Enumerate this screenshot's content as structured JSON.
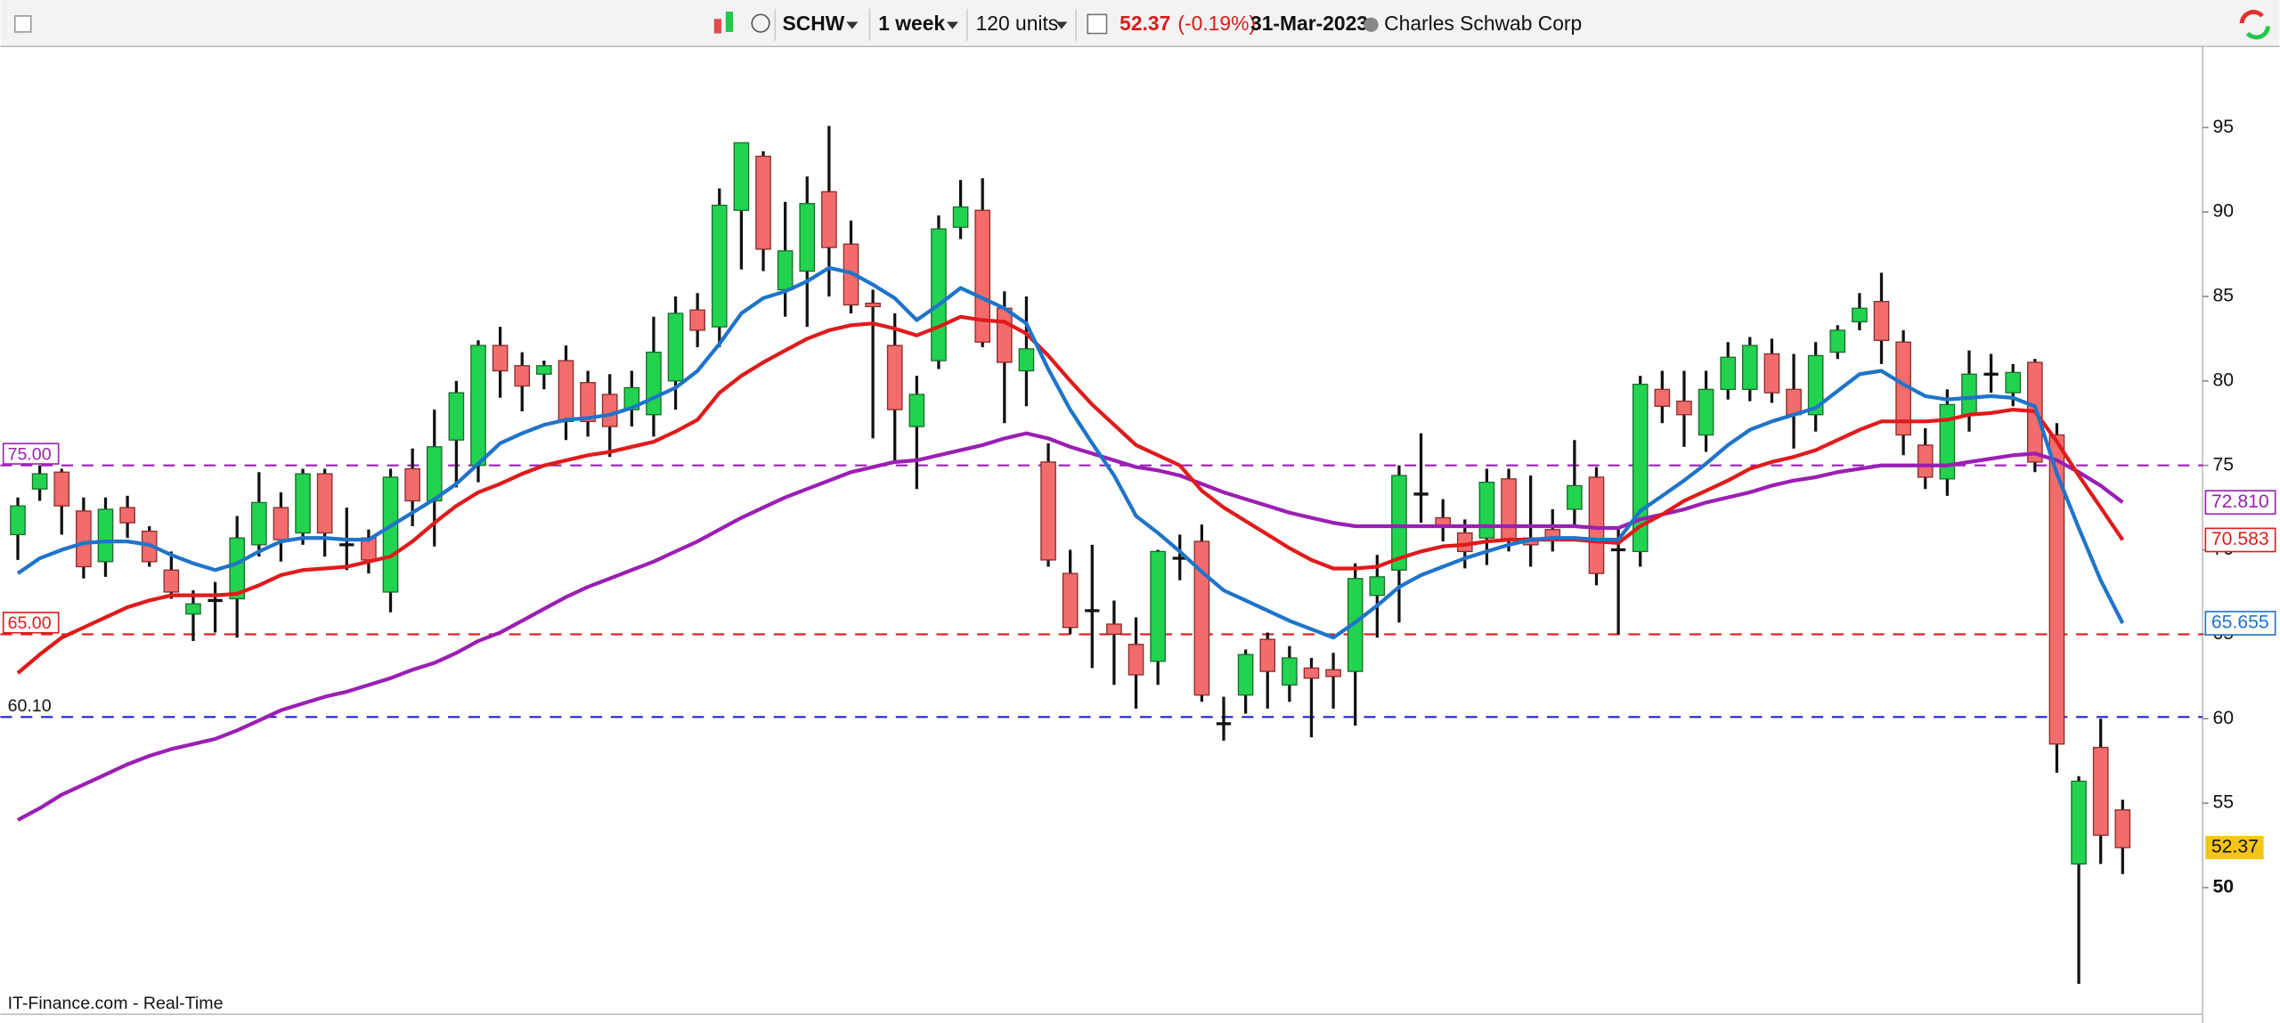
{
  "toolbar": {
    "symbol": "SCHW",
    "period": "1 week",
    "units": "120 units",
    "change": "(-0.19%)",
    "date": "31-Mar-2023",
    "name": "Charles Schwab Corp"
  },
  "footer": "IT-Finance.com - Real-Time",
  "chart_data": {
    "type": "candlestick",
    "up_color": "#22d34f",
    "down_color": "#f26c6c",
    "open": [
      70.9,
      73.6,
      74.6,
      72.3,
      69.3,
      72.5,
      71.1,
      68.8,
      66.2,
      66.9,
      67.1,
      70.3,
      72.5,
      71.0,
      74.5,
      70.4,
      70.7,
      67.5,
      74.8,
      72.9,
      76.5,
      75.0,
      82.1,
      80.9,
      80.4,
      81.2,
      79.9,
      79.2,
      78.3,
      78.0,
      80.0,
      84.2,
      83.2,
      90.1,
      93.3,
      85.4,
      86.5,
      91.2,
      88.1,
      84.6,
      82.1,
      77.3,
      81.2,
      89.1,
      90.1,
      84.3,
      80.6,
      75.2,
      68.6,
      66.5,
      65.6,
      64.4,
      63.4,
      69.6,
      70.5,
      59.8,
      61.4,
      64.7,
      62.0,
      63.0,
      62.9,
      62.8,
      67.3,
      68.8,
      73.4,
      71.9,
      71.0,
      70.7,
      74.2,
      70.7,
      71.2,
      72.4,
      74.3,
      70.1,
      69.9,
      79.5,
      78.8,
      76.8,
      79.5,
      79.5,
      81.6,
      79.5,
      78.0,
      81.7,
      83.5,
      84.7,
      82.3,
      76.2,
      74.2,
      78.0,
      80.5,
      79.3,
      81.1,
      76.8,
      51.4,
      58.3,
      54.6
    ],
    "high": [
      73.1,
      75.0,
      74.8,
      73.1,
      73.1,
      73.2,
      71.4,
      69.9,
      67.6,
      68.1,
      72.0,
      74.6,
      73.4,
      74.8,
      74.8,
      72.5,
      71.2,
      74.8,
      76.0,
      78.3,
      80.0,
      82.4,
      83.2,
      81.7,
      81.2,
      82.1,
      80.6,
      80.4,
      80.6,
      83.8,
      85.0,
      85.2,
      91.4,
      94.1,
      93.6,
      90.6,
      92.1,
      95.1,
      89.5,
      85.4,
      84.0,
      80.3,
      89.8,
      91.9,
      92.0,
      85.3,
      85.0,
      76.3,
      70.0,
      70.3,
      67.0,
      66.0,
      70.0,
      70.9,
      71.5,
      61.3,
      64.1,
      65.1,
      64.3,
      63.6,
      63.9,
      69.2,
      69.7,
      75.0,
      76.9,
      73.0,
      71.8,
      74.8,
      74.8,
      74.4,
      72.4,
      76.5,
      74.9,
      71.2,
      80.3,
      80.6,
      80.6,
      80.6,
      82.3,
      82.6,
      82.5,
      81.6,
      82.3,
      83.3,
      85.2,
      86.4,
      83.0,
      77.2,
      79.5,
      81.8,
      81.6,
      81.0,
      81.3,
      77.5,
      56.6,
      60.0,
      55.2
    ],
    "low": [
      69.4,
      72.9,
      70.9,
      68.3,
      68.4,
      70.7,
      69.0,
      67.1,
      64.6,
      65.1,
      64.8,
      69.6,
      69.3,
      70.3,
      69.6,
      68.8,
      68.6,
      66.3,
      71.4,
      70.2,
      73.7,
      74.0,
      79.0,
      78.2,
      79.5,
      76.5,
      76.7,
      75.5,
      77.3,
      76.7,
      78.3,
      82.0,
      82.0,
      86.6,
      86.5,
      83.8,
      83.2,
      85.0,
      84.0,
      76.6,
      75.1,
      73.6,
      80.7,
      88.4,
      82.0,
      77.5,
      78.5,
      69.0,
      65.0,
      63.0,
      62.0,
      60.6,
      62.0,
      68.2,
      61.0,
      58.7,
      60.3,
      60.6,
      61.0,
      58.9,
      60.6,
      59.6,
      64.8,
      65.7,
      71.6,
      70.5,
      68.9,
      69.1,
      69.9,
      69.0,
      69.9,
      71.3,
      67.9,
      65.0,
      69.0,
      77.5,
      76.1,
      75.8,
      78.9,
      78.8,
      78.7,
      76.0,
      77.0,
      81.3,
      83.0,
      81.0,
      75.6,
      73.6,
      73.2,
      77.0,
      79.3,
      78.5,
      74.6,
      56.8,
      44.3,
      51.4,
      50.8
    ],
    "close": [
      72.6,
      74.5,
      72.6,
      69.0,
      72.4,
      71.6,
      69.3,
      67.5,
      66.8,
      67.0,
      70.7,
      72.8,
      70.6,
      74.5,
      71.0,
      70.3,
      69.4,
      74.3,
      72.9,
      76.1,
      79.3,
      82.1,
      80.6,
      79.7,
      80.9,
      77.6,
      77.6,
      77.3,
      79.6,
      81.7,
      84.0,
      83.0,
      90.4,
      94.1,
      87.8,
      87.7,
      90.5,
      87.9,
      84.5,
      84.4,
      78.3,
      79.2,
      89.0,
      90.3,
      82.3,
      81.1,
      81.9,
      69.4,
      65.4,
      66.4,
      65.0,
      62.6,
      69.9,
      69.5,
      61.4,
      59.7,
      63.8,
      62.8,
      63.6,
      62.4,
      62.5,
      68.3,
      68.4,
      74.4,
      73.3,
      71.4,
      69.9,
      74.0,
      70.6,
      70.3,
      70.6,
      73.8,
      68.6,
      70.0,
      79.8,
      78.5,
      78.0,
      79.5,
      81.4,
      82.1,
      79.3,
      78.0,
      81.5,
      83.0,
      84.3,
      82.4,
      76.8,
      74.3,
      78.6,
      80.4,
      80.4,
      80.5,
      75.2,
      58.5,
      56.3,
      53.1,
      52.37
    ],
    "series": [
      {
        "color": "#9b1fb3",
        "values": [
          54.0,
          54.7,
          55.5,
          56.1,
          56.7,
          57.3,
          57.8,
          58.2,
          58.5,
          58.8,
          59.3,
          59.9,
          60.5,
          60.9,
          61.3,
          61.6,
          62.0,
          62.4,
          62.9,
          63.3,
          63.9,
          64.6,
          65.1,
          65.8,
          66.5,
          67.2,
          67.8,
          68.3,
          68.8,
          69.3,
          69.9,
          70.5,
          71.2,
          71.9,
          72.5,
          73.1,
          73.6,
          74.1,
          74.6,
          74.9,
          75.2,
          75.3,
          75.6,
          75.9,
          76.2,
          76.6,
          76.9,
          76.6,
          76.1,
          75.7,
          75.3,
          74.9,
          74.7,
          74.4,
          73.9,
          73.4,
          73.0,
          72.6,
          72.2,
          71.9,
          71.6,
          71.4,
          71.4,
          71.4,
          71.4,
          71.4,
          71.4,
          71.4,
          71.4,
          71.4,
          71.4,
          71.4,
          71.3,
          71.3,
          71.8,
          72.1,
          72.4,
          72.8,
          73.1,
          73.4,
          73.8,
          74.1,
          74.3,
          74.6,
          74.8,
          75.0,
          75.0,
          75.0,
          75.0,
          75.2,
          75.4,
          75.6,
          75.7,
          75.3,
          74.6,
          73.8,
          72.81
        ],
        "value_labels": [
          null,
          null,
          null,
          null,
          null,
          null,
          null,
          null,
          null,
          null,
          null,
          null,
          null,
          null,
          null,
          null,
          null,
          null,
          null,
          null,
          null,
          null,
          null,
          null,
          null,
          null,
          null,
          null,
          null,
          null,
          null,
          null,
          null,
          null,
          null,
          null,
          null,
          null,
          null,
          null,
          null,
          null,
          null,
          null,
          null,
          null,
          null,
          null,
          null,
          null,
          null,
          null,
          null,
          null,
          null,
          null,
          null,
          null,
          null,
          null,
          null,
          null,
          null,
          null,
          null,
          null,
          null,
          null,
          null,
          null,
          null,
          null,
          null,
          null,
          null,
          null,
          null,
          null,
          null,
          null,
          null,
          null,
          null,
          null,
          null,
          null,
          null,
          null,
          null,
          null,
          null,
          null,
          null,
          null,
          null,
          null,
          "72.810"
        ]
      },
      {
        "color": "#e01b1b",
        "values": [
          62.7,
          63.8,
          64.8,
          65.4,
          66.0,
          66.6,
          67.0,
          67.3,
          67.3,
          67.3,
          67.4,
          67.9,
          68.5,
          68.8,
          68.9,
          69.0,
          69.3,
          69.6,
          70.5,
          71.6,
          72.6,
          73.4,
          73.9,
          74.5,
          75.0,
          75.3,
          75.6,
          75.8,
          76.1,
          76.4,
          77.0,
          77.7,
          79.3,
          80.3,
          81.1,
          81.8,
          82.5,
          83.0,
          83.3,
          83.4,
          83.1,
          82.7,
          83.2,
          83.8,
          83.6,
          83.5,
          82.8,
          81.5,
          80.0,
          78.6,
          77.4,
          76.2,
          75.6,
          75.0,
          73.5,
          72.5,
          71.7,
          70.9,
          70.1,
          69.4,
          68.9,
          68.9,
          69.0,
          69.5,
          69.9,
          70.2,
          70.3,
          70.5,
          70.6,
          70.6,
          70.6,
          70.6,
          70.5,
          70.4,
          71.4,
          72.1,
          72.9,
          73.5,
          74.1,
          74.8,
          75.2,
          75.5,
          75.9,
          76.5,
          77.1,
          77.6,
          77.6,
          77.6,
          77.7,
          78.0,
          78.1,
          78.3,
          78.2,
          76.4,
          74.4,
          72.5,
          70.583
        ]
      },
      {
        "color": "#1f74c9",
        "values": [
          68.6,
          69.5,
          70.0,
          70.4,
          70.5,
          70.5,
          70.3,
          69.7,
          69.2,
          68.8,
          69.2,
          69.9,
          70.5,
          70.7,
          70.7,
          70.6,
          70.6,
          71.4,
          72.2,
          73.0,
          73.9,
          75.1,
          76.3,
          76.9,
          77.4,
          77.7,
          77.8,
          78.0,
          78.4,
          79.0,
          79.6,
          80.6,
          82.2,
          84.0,
          84.9,
          85.3,
          85.9,
          86.7,
          86.4,
          85.7,
          84.9,
          83.6,
          84.5,
          85.5,
          84.9,
          84.3,
          83.4,
          80.7,
          78.3,
          76.3,
          74.4,
          72.0,
          71.0,
          69.9,
          68.7,
          67.6,
          67.0,
          66.4,
          65.8,
          65.3,
          64.8,
          65.7,
          66.7,
          67.8,
          68.5,
          69.0,
          69.5,
          69.9,
          70.3,
          70.6,
          70.7,
          70.7,
          70.6,
          70.6,
          72.3,
          73.2,
          74.1,
          75.1,
          76.2,
          77.1,
          77.6,
          78.0,
          78.4,
          79.4,
          80.4,
          80.6,
          79.8,
          79.1,
          78.9,
          79.0,
          79.1,
          79.0,
          78.5,
          74.5,
          71.3,
          68.2,
          65.655
        ]
      }
    ],
    "hlines": [
      {
        "value": 75,
        "label": "75.00",
        "color": "#9b1fb3"
      },
      {
        "value": 65,
        "label": "65.00",
        "color": "#e01b1b"
      },
      {
        "value": 60.1,
        "label": "60.10",
        "color": "#2323c8"
      }
    ],
    "ylim": [
      42.5,
      99.8
    ],
    "yticks": [
      50,
      55,
      60,
      65,
      70,
      75,
      80,
      85,
      90,
      95
    ]
  }
}
